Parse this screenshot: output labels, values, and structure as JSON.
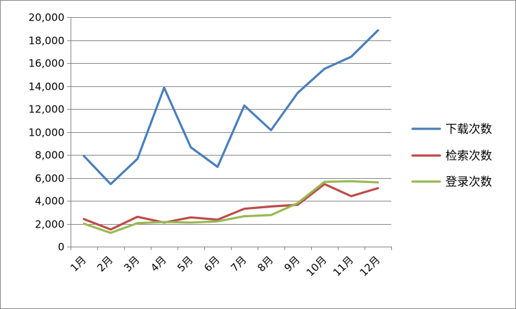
{
  "chart_data": {
    "type": "line",
    "categories": [
      "1月",
      "2月",
      "3月",
      "4月",
      "5月",
      "6月",
      "7月",
      "8月",
      "9月",
      "10月",
      "11月",
      "12月"
    ],
    "ylim": [
      0,
      20000
    ],
    "yticks": [
      0,
      2000,
      4000,
      6000,
      8000,
      10000,
      12000,
      14000,
      16000,
      18000,
      20000
    ],
    "ytick_labels": [
      "0",
      "2,000",
      "4,000",
      "6,000",
      "8,000",
      "10,000",
      "12,000",
      "14,000",
      "16,000",
      "18,000",
      "20,000"
    ],
    "grid": "horizontal",
    "legend_position": "right",
    "series": [
      {
        "name": "下载次数",
        "color": "#4A7EBB",
        "values": [
          7900,
          5450,
          7650,
          13850,
          8650,
          6950,
          12300,
          10150,
          13400,
          15500,
          16550,
          18850
        ]
      },
      {
        "name": "检索次数",
        "color": "#BE4B48",
        "values": [
          2400,
          1500,
          2600,
          2100,
          2550,
          2350,
          3300,
          3500,
          3650,
          5450,
          4400,
          5100
        ]
      },
      {
        "name": "登录次数",
        "color": "#98B954",
        "values": [
          2000,
          1200,
          2050,
          2150,
          2100,
          2200,
          2650,
          2750,
          3800,
          5650,
          5700,
          5600
        ]
      }
    ]
  }
}
